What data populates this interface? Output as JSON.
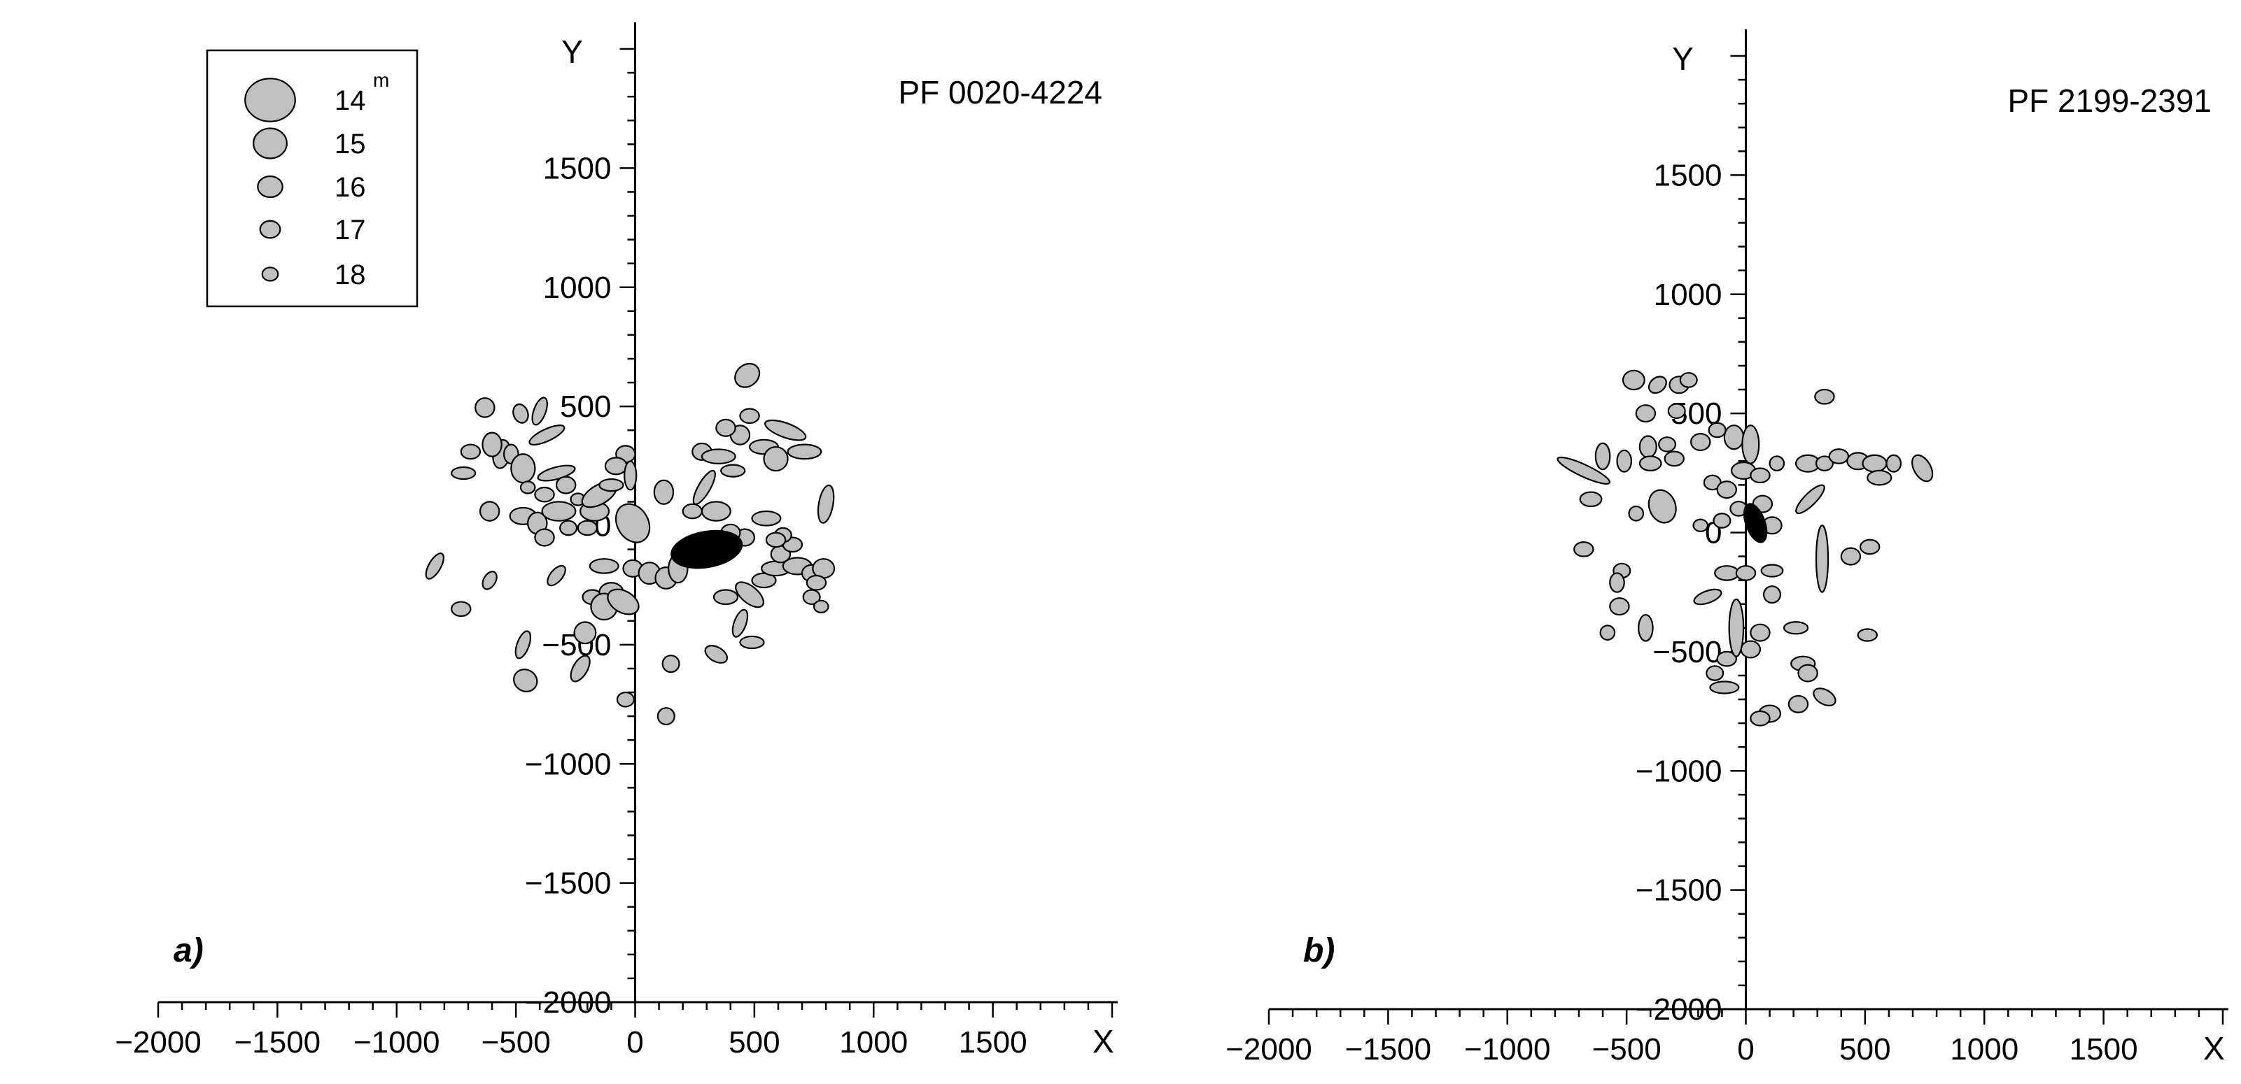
{
  "chart_data": [
    {
      "type": "scatter",
      "panel_label": "a)",
      "title": "PF 0020-4224",
      "xlabel": "X",
      "ylabel": "Y",
      "xlim": [
        -2000,
        2000
      ],
      "ylim": [
        -2000,
        2000
      ],
      "xticks": [
        "−2000",
        "−1500",
        "−1000",
        "−500",
        "0",
        "500",
        "1000",
        "1500"
      ],
      "yticks": [
        "1500",
        "1000",
        "500",
        "0",
        "−500",
        "−1000",
        "−1500",
        "−2000"
      ],
      "grid": false,
      "legend_position": "top-left",
      "legend": {
        "unit": "m",
        "entries": [
          {
            "label": "14",
            "rx": 105,
            "ry": 90
          },
          {
            "label": "15",
            "rx": 70,
            "ry": 63
          },
          {
            "label": "16",
            "rx": 52,
            "ry": 44
          },
          {
            "label": "17",
            "rx": 42,
            "ry": 36
          },
          {
            "label": "18",
            "rx": 33,
            "ry": 28
          }
        ]
      },
      "highlight": {
        "x": 300,
        "y": -100,
        "rx": 150,
        "ry": 75,
        "angle": -10,
        "fill": "#000000"
      },
      "point_fill": "#c0c0c0",
      "points": [
        [
          -630,
          495,
          40,
          40,
          0
        ],
        [
          -560,
          300,
          35,
          60,
          10
        ],
        [
          -480,
          470,
          30,
          40,
          -20
        ],
        [
          -400,
          480,
          25,
          60,
          20
        ],
        [
          -370,
          380,
          80,
          25,
          -25
        ],
        [
          -690,
          310,
          40,
          30,
          0
        ],
        [
          -720,
          220,
          50,
          25,
          0
        ],
        [
          -600,
          340,
          40,
          50,
          0
        ],
        [
          -520,
          300,
          30,
          40,
          0
        ],
        [
          -470,
          240,
          50,
          60,
          0
        ],
        [
          -330,
          220,
          80,
          25,
          -15
        ],
        [
          -450,
          160,
          30,
          25,
          0
        ],
        [
          -380,
          130,
          40,
          30,
          0
        ],
        [
          -290,
          170,
          40,
          35,
          0
        ],
        [
          -240,
          110,
          30,
          25,
          0
        ],
        [
          -610,
          60,
          40,
          40,
          -30
        ],
        [
          -470,
          40,
          55,
          35,
          0
        ],
        [
          -410,
          10,
          40,
          45,
          0
        ],
        [
          -380,
          -50,
          40,
          35,
          0
        ],
        [
          -320,
          60,
          70,
          40,
          0
        ],
        [
          -280,
          -10,
          35,
          30,
          0
        ],
        [
          -200,
          -10,
          40,
          30,
          0
        ],
        [
          -170,
          60,
          60,
          40,
          0
        ],
        [
          -150,
          130,
          80,
          40,
          -30
        ],
        [
          -100,
          170,
          50,
          25,
          0
        ],
        [
          -40,
          300,
          40,
          35,
          0
        ],
        [
          -80,
          250,
          45,
          35,
          0
        ],
        [
          -20,
          210,
          25,
          60,
          0
        ],
        [
          -10,
          10,
          65,
          85,
          -30
        ],
        [
          -840,
          -170,
          60,
          25,
          -60
        ],
        [
          -730,
          -350,
          40,
          30,
          0
        ],
        [
          -610,
          -230,
          40,
          25,
          -60
        ],
        [
          -330,
          -210,
          50,
          25,
          -50
        ],
        [
          -130,
          -170,
          60,
          30,
          0
        ],
        [
          -180,
          -300,
          40,
          30,
          0
        ],
        [
          -100,
          -280,
          50,
          40,
          0
        ],
        [
          -130,
          -340,
          55,
          55,
          0
        ],
        [
          -50,
          -320,
          70,
          45,
          30
        ],
        [
          -10,
          -180,
          40,
          35,
          0
        ],
        [
          60,
          -200,
          45,
          45,
          0
        ],
        [
          130,
          -220,
          45,
          45,
          0
        ],
        [
          180,
          -180,
          40,
          60,
          0
        ],
        [
          -210,
          -450,
          45,
          45,
          0
        ],
        [
          -470,
          -500,
          60,
          25,
          -70
        ],
        [
          -460,
          -650,
          50,
          45,
          30
        ],
        [
          -230,
          -600,
          60,
          30,
          -60
        ],
        [
          -40,
          -730,
          35,
          30,
          0
        ],
        [
          150,
          -580,
          35,
          35,
          0
        ],
        [
          130,
          -800,
          35,
          35,
          0
        ],
        [
          340,
          -540,
          50,
          30,
          30
        ],
        [
          490,
          -490,
          50,
          25,
          0
        ],
        [
          440,
          -410,
          60,
          25,
          -70
        ],
        [
          380,
          -300,
          50,
          30,
          0
        ],
        [
          480,
          -290,
          70,
          35,
          40
        ],
        [
          540,
          -230,
          50,
          30,
          0
        ],
        [
          590,
          -180,
          60,
          30,
          0
        ],
        [
          610,
          -120,
          40,
          35,
          0
        ],
        [
          660,
          -80,
          40,
          30,
          0
        ],
        [
          680,
          -170,
          60,
          35,
          0
        ],
        [
          740,
          -200,
          40,
          35,
          0
        ],
        [
          790,
          -180,
          45,
          40,
          0
        ],
        [
          760,
          -240,
          40,
          30,
          0
        ],
        [
          740,
          -300,
          35,
          30,
          0
        ],
        [
          780,
          -340,
          30,
          25,
          0
        ],
        [
          620,
          -40,
          35,
          30,
          0
        ],
        [
          550,
          30,
          60,
          30,
          0
        ],
        [
          590,
          -60,
          40,
          30,
          0
        ],
        [
          460,
          -50,
          40,
          35,
          0
        ],
        [
          340,
          60,
          60,
          40,
          0
        ],
        [
          400,
          -30,
          40,
          35,
          0
        ],
        [
          240,
          60,
          40,
          30,
          0
        ],
        [
          290,
          160,
          80,
          25,
          -60
        ],
        [
          280,
          310,
          40,
          35,
          0
        ],
        [
          350,
          290,
          70,
          30,
          0
        ],
        [
          410,
          230,
          50,
          25,
          0
        ],
        [
          440,
          380,
          40,
          40,
          0
        ],
        [
          540,
          330,
          60,
          30,
          0
        ],
        [
          630,
          400,
          90,
          30,
          20
        ],
        [
          710,
          310,
          70,
          30,
          0
        ],
        [
          590,
          280,
          50,
          50,
          0
        ],
        [
          480,
          460,
          40,
          30,
          0
        ],
        [
          470,
          630,
          55,
          45,
          -40
        ],
        [
          380,
          410,
          40,
          35,
          0
        ],
        [
          800,
          90,
          30,
          80,
          10
        ],
        [
          120,
          140,
          40,
          50,
          0
        ]
      ]
    },
    {
      "type": "scatter",
      "panel_label": "b)",
      "title": "PF 2199-2391",
      "xlabel": "X",
      "ylabel": "Y",
      "xlim": [
        -2000,
        2000
      ],
      "ylim": [
        -2000,
        2000
      ],
      "xticks": [
        "−2000",
        "−1500",
        "−1000",
        "−500",
        "0",
        "500",
        "1000",
        "1500"
      ],
      "yticks": [
        "1500",
        "1000",
        "500",
        "0",
        "−500",
        "−1000",
        "−1500",
        "−2000"
      ],
      "grid": false,
      "highlight": {
        "x": 40,
        "y": 40,
        "rx": 40,
        "ry": 85,
        "angle": -20,
        "fill": "#000000"
      },
      "point_fill": "#c0c0c0",
      "points": [
        [
          -470,
          640,
          45,
          40,
          0
        ],
        [
          -370,
          620,
          40,
          30,
          -40
        ],
        [
          -280,
          620,
          40,
          35,
          0
        ],
        [
          -240,
          640,
          35,
          30,
          0
        ],
        [
          -420,
          500,
          40,
          35,
          0
        ],
        [
          -290,
          510,
          35,
          30,
          0
        ],
        [
          -410,
          360,
          35,
          45,
          0
        ],
        [
          -330,
          370,
          35,
          30,
          0
        ],
        [
          -300,
          310,
          40,
          30,
          0
        ],
        [
          -190,
          380,
          40,
          35,
          0
        ],
        [
          -120,
          430,
          35,
          30,
          0
        ],
        [
          -50,
          400,
          40,
          50,
          0
        ],
        [
          20,
          370,
          35,
          80,
          0
        ],
        [
          -10,
          260,
          50,
          35,
          0
        ],
        [
          60,
          240,
          40,
          30,
          0
        ],
        [
          130,
          290,
          30,
          30,
          0
        ],
        [
          -680,
          260,
          120,
          25,
          25
        ],
        [
          -600,
          320,
          30,
          55,
          0
        ],
        [
          -510,
          300,
          30,
          45,
          0
        ],
        [
          -400,
          290,
          45,
          30,
          0
        ],
        [
          -350,
          110,
          55,
          70,
          -20
        ],
        [
          -460,
          80,
          30,
          30,
          0
        ],
        [
          -650,
          140,
          45,
          30,
          0
        ],
        [
          -140,
          210,
          35,
          30,
          0
        ],
        [
          -80,
          180,
          40,
          35,
          0
        ],
        [
          -30,
          100,
          35,
          30,
          0
        ],
        [
          70,
          120,
          40,
          35,
          0
        ],
        [
          110,
          30,
          40,
          35,
          0
        ],
        [
          -100,
          50,
          35,
          30,
          0
        ],
        [
          -190,
          30,
          30,
          25,
          0
        ],
        [
          260,
          290,
          50,
          35,
          0
        ],
        [
          330,
          290,
          35,
          30,
          0
        ],
        [
          390,
          320,
          40,
          30,
          0
        ],
        [
          470,
          300,
          45,
          35,
          0
        ],
        [
          540,
          290,
          50,
          35,
          0
        ],
        [
          560,
          230,
          50,
          30,
          0
        ],
        [
          620,
          290,
          30,
          35,
          0
        ],
        [
          740,
          270,
          35,
          60,
          -30
        ],
        [
          330,
          570,
          40,
          30,
          0
        ],
        [
          270,
          140,
          80,
          25,
          -45
        ],
        [
          320,
          -110,
          25,
          140,
          0
        ],
        [
          210,
          -400,
          50,
          25,
          0
        ],
        [
          240,
          -550,
          50,
          30,
          0
        ],
        [
          260,
          -590,
          40,
          35,
          0
        ],
        [
          330,
          -690,
          50,
          30,
          30
        ],
        [
          220,
          -720,
          40,
          35,
          0
        ],
        [
          100,
          -760,
          45,
          35,
          0
        ],
        [
          60,
          -780,
          40,
          30,
          0
        ],
        [
          -90,
          -650,
          60,
          25,
          0
        ],
        [
          -80,
          -530,
          40,
          30,
          0
        ],
        [
          -130,
          -590,
          35,
          30,
          0
        ],
        [
          20,
          -490,
          40,
          35,
          0
        ],
        [
          60,
          -420,
          40,
          35,
          0
        ],
        [
          -40,
          -400,
          30,
          120,
          0
        ],
        [
          -160,
          -270,
          60,
          25,
          -20
        ],
        [
          110,
          -260,
          35,
          35,
          0
        ],
        [
          -80,
          -170,
          50,
          30,
          0
        ],
        [
          0,
          -170,
          40,
          30,
          0
        ],
        [
          -520,
          -160,
          35,
          30,
          0
        ],
        [
          -540,
          -210,
          30,
          40,
          0
        ],
        [
          -530,
          -310,
          40,
          35,
          0
        ],
        [
          -580,
          -420,
          30,
          30,
          0
        ],
        [
          -420,
          -400,
          30,
          55,
          0
        ],
        [
          -680,
          -70,
          40,
          30,
          0
        ],
        [
          440,
          -100,
          40,
          35,
          0
        ],
        [
          520,
          -60,
          40,
          30,
          0
        ],
        [
          510,
          -430,
          40,
          25,
          0
        ],
        [
          110,
          -160,
          45,
          25,
          0
        ]
      ]
    }
  ]
}
